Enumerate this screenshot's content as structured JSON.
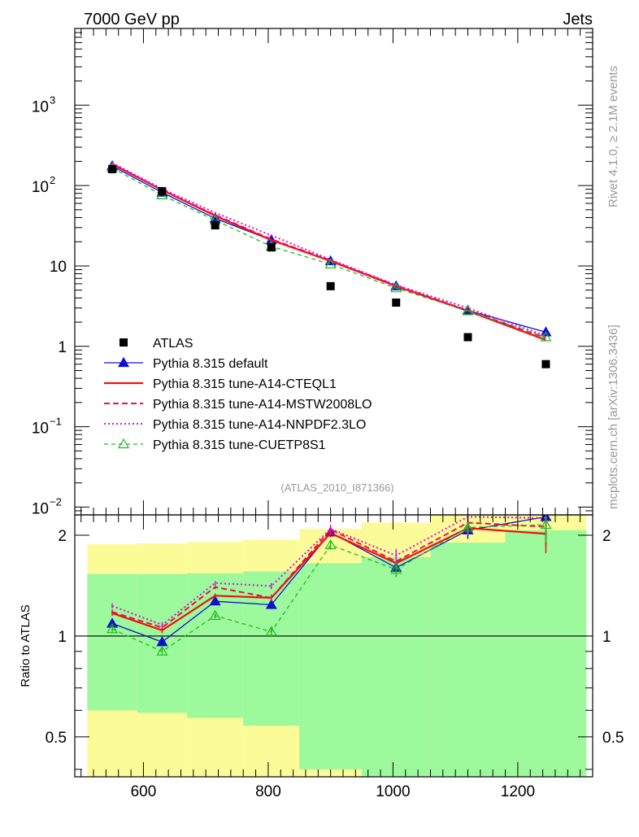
{
  "header": {
    "left": "7000 GeV pp",
    "right": "Jets"
  },
  "side_labels": {
    "top": "Rivet 4.1.0, ≥ 2.1M events",
    "bottom": "mcplots.cern.ch [arXiv:1306.3436]"
  },
  "analysis_id": "(ATLAS_2010_I871366)",
  "colors": {
    "atlas": "#000000",
    "default": "#1010d0",
    "cteql1": "#ee1111",
    "mstw": "#ee1144",
    "nnpdf": "#dd11dd",
    "cuetp8s1": "#22bb22",
    "band_inner": "#9cf99c",
    "band_outer": "#fbfb98"
  },
  "chart_data": [
    {
      "type": "scatter",
      "title": "",
      "xlabel": "",
      "ylabel": "",
      "xlim": [
        490,
        1320
      ],
      "ylim": [
        0.008,
        9000
      ],
      "yscale": "log",
      "yticks": [
        {
          "value": 0.01,
          "base": "10",
          "exp": "−2"
        },
        {
          "value": 0.1,
          "base": "10",
          "exp": "−1"
        },
        {
          "value": 1,
          "label": "1"
        },
        {
          "value": 10,
          "label": "10"
        },
        {
          "value": 100,
          "base": "10",
          "exp": "2"
        },
        {
          "value": 1000,
          "base": "10",
          "exp": "3"
        }
      ],
      "x": [
        550,
        630,
        715,
        805,
        900,
        1005,
        1120,
        1245
      ],
      "atlas": [
        160,
        85,
        32,
        17,
        5.6,
        3.5,
        1.3,
        0.6
      ],
      "series": [
        {
          "name": "Pythia 8.315 default",
          "key": "default",
          "values": [
            175,
            82,
            39,
            21,
            11.5,
            5.6,
            2.8,
            1.5
          ]
        },
        {
          "name": "Pythia 8.315 tune-A14-CTEQL1",
          "key": "cteql1",
          "values": [
            185,
            88,
            42,
            21,
            11.5,
            5.6,
            2.75,
            1.2
          ]
        },
        {
          "name": "Pythia 8.315 tune-A14-MSTW2008LO",
          "key": "mstw",
          "values": [
            186,
            88,
            43,
            21.5,
            11.7,
            5.7,
            2.8,
            1.28
          ]
        },
        {
          "name": "Pythia 8.315 tune-A14-NNPDF2.3LO",
          "key": "nnpdf",
          "values": [
            192,
            91,
            46,
            24,
            12,
            5.8,
            3.0,
            1.35
          ]
        },
        {
          "name": "Pythia 8.315 tune-CUETP8S1",
          "key": "cuetp8s1",
          "values": [
            166,
            76,
            37,
            17.5,
            10.5,
            5.3,
            2.75,
            1.3
          ]
        }
      ],
      "legend": [
        "ATLAS",
        "Pythia 8.315 default",
        "Pythia 8.315 tune-A14-CTEQL1",
        "Pythia 8.315 tune-A14-MSTW2008LO",
        "Pythia 8.315 tune-A14-NNPDF2.3LO",
        "Pythia 8.315 tune-CUETP8S1"
      ],
      "legend_position": "bottom-left"
    },
    {
      "type": "line",
      "title": "",
      "xlabel": "",
      "ylabel": "Ratio to ATLAS",
      "xlim": [
        490,
        1320
      ],
      "ylim": [
        0.38,
        2.3
      ],
      "yscale": "log",
      "yticks": [
        {
          "value": 0.5,
          "label": "0.5"
        },
        {
          "value": 1,
          "label": "1"
        },
        {
          "value": 2,
          "label": "2"
        }
      ],
      "xticks": [
        {
          "value": 600,
          "label": "600"
        },
        {
          "value": 800,
          "label": "800"
        },
        {
          "value": 1000,
          "label": "1000"
        },
        {
          "value": 1200,
          "label": "1200"
        }
      ],
      "x": [
        550,
        630,
        715,
        805,
        900,
        1005,
        1120,
        1245
      ],
      "bin_edges": [
        510,
        590,
        670,
        760,
        850,
        950,
        1060,
        1180,
        1310
      ],
      "band_inner": [
        [
          0.6,
          1.53
        ],
        [
          0.59,
          1.53
        ],
        [
          0.57,
          1.54
        ],
        [
          0.54,
          1.56
        ],
        [
          0.4,
          1.65
        ],
        [
          0.33,
          1.72
        ],
        [
          0.33,
          1.9
        ],
        [
          0.33,
          2.07
        ]
      ],
      "band_outer": [
        [
          0.33,
          1.88
        ],
        [
          0.33,
          1.89
        ],
        [
          0.33,
          1.91
        ],
        [
          0.33,
          1.94
        ],
        [
          0.38,
          2.09
        ],
        [
          0.33,
          2.18
        ],
        [
          0.33,
          2.3
        ],
        [
          0.33,
          2.3
        ]
      ],
      "series": [
        {
          "name": "Pythia 8.315 default",
          "key": "default",
          "values": [
            1.09,
            0.96,
            1.27,
            1.24,
            2.04,
            1.6,
            2.07,
            2.27
          ],
          "err": [
            0.02,
            0.02,
            0.02,
            0.03,
            0.06,
            0.08,
            0.12,
            0.3
          ]
        },
        {
          "name": "Pythia 8.315 tune-A14-CTEQL1",
          "key": "cteql1",
          "values": [
            1.17,
            1.04,
            1.32,
            1.3,
            2.03,
            1.65,
            2.1,
            2.02
          ],
          "err": [
            0.02,
            0.02,
            0.02,
            0.03,
            0.06,
            0.08,
            0.1,
            0.25
          ]
        },
        {
          "name": "Pythia 8.315 tune-A14-MSTW2008LO",
          "key": "mstw",
          "values": [
            1.18,
            1.06,
            1.4,
            1.3,
            2.08,
            1.67,
            2.18,
            2.12
          ],
          "err": [
            0.02,
            0.02,
            0.02,
            0.03,
            0.06,
            0.08,
            0.1,
            0.25
          ]
        },
        {
          "name": "Pythia 8.315 tune-A14-NNPDF2.3LO",
          "key": "nnpdf",
          "values": [
            1.23,
            1.08,
            1.44,
            1.41,
            2.09,
            1.74,
            2.27,
            2.25
          ],
          "err": [
            0.02,
            0.02,
            0.02,
            0.03,
            0.06,
            0.08,
            0.1,
            0.25
          ]
        },
        {
          "name": "Pythia 8.315 tune-CUETP8S1",
          "key": "cuetp8s1",
          "values": [
            1.05,
            0.9,
            1.15,
            1.03,
            1.87,
            1.58,
            2.11,
            2.15
          ],
          "err": [
            0.02,
            0.02,
            0.02,
            0.03,
            0.06,
            0.08,
            0.1,
            0.25
          ]
        }
      ]
    }
  ]
}
